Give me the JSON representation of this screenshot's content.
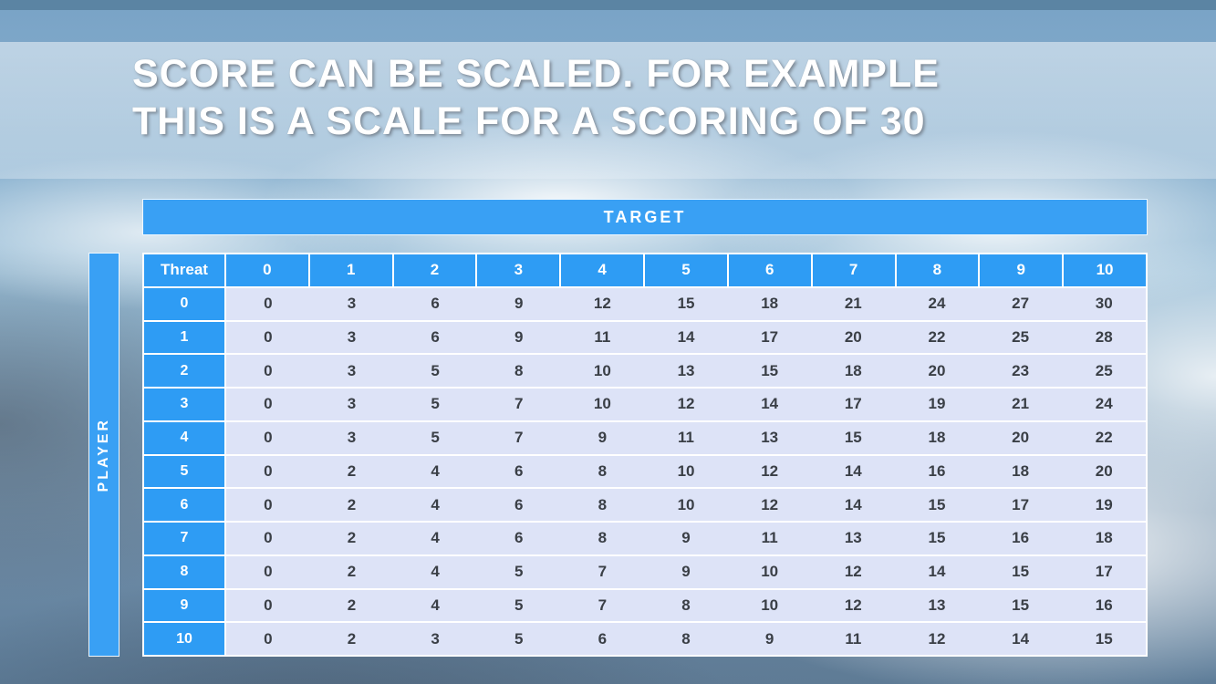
{
  "slide": {
    "title_line1": "SCORE CAN BE SCALED. FOR EXAMPLE",
    "title_line2": "THIS IS A SCALE FOR A SCORING OF 30"
  },
  "table": {
    "target_label": "TARGET",
    "player_label": "PLAYER",
    "corner_label": "Threat",
    "column_headers": [
      "0",
      "1",
      "2",
      "3",
      "4",
      "5",
      "6",
      "7",
      "8",
      "9",
      "10"
    ],
    "row_headers": [
      "0",
      "1",
      "2",
      "3",
      "4",
      "5",
      "6",
      "7",
      "8",
      "9",
      "10"
    ]
  },
  "colors": {
    "header_blue": "#2e9cf4",
    "axis_bar_blue": "#39a0f4",
    "cell_lavender": "#dde3f7",
    "top_strip_blue": "#5b84a3",
    "title_text": "#ffffff"
  },
  "chart_data": {
    "type": "table",
    "title": "Scale for a scoring of 30",
    "columns_axis_label": "TARGET",
    "rows_axis_label": "PLAYER",
    "corner_label": "Threat",
    "column_labels": [
      0,
      1,
      2,
      3,
      4,
      5,
      6,
      7,
      8,
      9,
      10
    ],
    "row_labels": [
      0,
      1,
      2,
      3,
      4,
      5,
      6,
      7,
      8,
      9,
      10
    ],
    "values": [
      [
        0,
        3,
        6,
        9,
        12,
        15,
        18,
        21,
        24,
        27,
        30
      ],
      [
        0,
        3,
        6,
        9,
        11,
        14,
        17,
        20,
        22,
        25,
        28
      ],
      [
        0,
        3,
        5,
        8,
        10,
        13,
        15,
        18,
        20,
        23,
        25
      ],
      [
        0,
        3,
        5,
        7,
        10,
        12,
        14,
        17,
        19,
        21,
        24
      ],
      [
        0,
        3,
        5,
        7,
        9,
        11,
        13,
        15,
        18,
        20,
        22
      ],
      [
        0,
        2,
        4,
        6,
        8,
        10,
        12,
        14,
        16,
        18,
        20
      ],
      [
        0,
        2,
        4,
        6,
        8,
        10,
        12,
        14,
        15,
        17,
        19
      ],
      [
        0,
        2,
        4,
        6,
        8,
        9,
        11,
        13,
        15,
        16,
        18
      ],
      [
        0,
        2,
        4,
        5,
        7,
        9,
        10,
        12,
        14,
        15,
        17
      ],
      [
        0,
        2,
        4,
        5,
        7,
        8,
        10,
        12,
        13,
        15,
        16
      ],
      [
        0,
        2,
        3,
        5,
        6,
        8,
        9,
        11,
        12,
        14,
        15
      ]
    ]
  }
}
